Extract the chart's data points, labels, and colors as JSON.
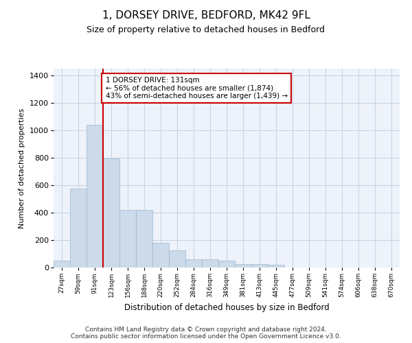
{
  "title_line1": "1, DORSEY DRIVE, BEDFORD, MK42 9FL",
  "title_line2": "Size of property relative to detached houses in Bedford",
  "xlabel": "Distribution of detached houses by size in Bedford",
  "ylabel": "Number of detached properties",
  "bar_color": "#ccdaea",
  "bar_edge_color": "#9ab8d0",
  "grid_color": "#c8d4e4",
  "background_color": "#eef2fa",
  "vline_color": "#cc0000",
  "annotation_text": "1 DORSEY DRIVE: 131sqm\n← 56% of detached houses are smaller (1,874)\n43% of semi-detached houses are larger (1,439) →",
  "annotation_box_color": "#ffffff",
  "annotation_border_color": "#cc0000",
  "categories": [
    "27sqm",
    "59sqm",
    "91sqm",
    "123sqm",
    "156sqm",
    "188sqm",
    "220sqm",
    "252sqm",
    "284sqm",
    "316sqm",
    "349sqm",
    "381sqm",
    "413sqm",
    "445sqm",
    "477sqm",
    "509sqm",
    "541sqm",
    "574sqm",
    "606sqm",
    "638sqm",
    "670sqm"
  ],
  "values": [
    50,
    575,
    1040,
    795,
    420,
    420,
    180,
    125,
    62,
    58,
    50,
    25,
    25,
    20,
    0,
    0,
    0,
    0,
    0,
    0,
    0
  ],
  "ylim": [
    0,
    1450
  ],
  "yticks": [
    0,
    200,
    400,
    600,
    800,
    1000,
    1200,
    1400
  ],
  "footer_line1": "Contains HM Land Registry data © Crown copyright and database right 2024.",
  "footer_line2": "Contains public sector information licensed under the Open Government Licence v3.0."
}
